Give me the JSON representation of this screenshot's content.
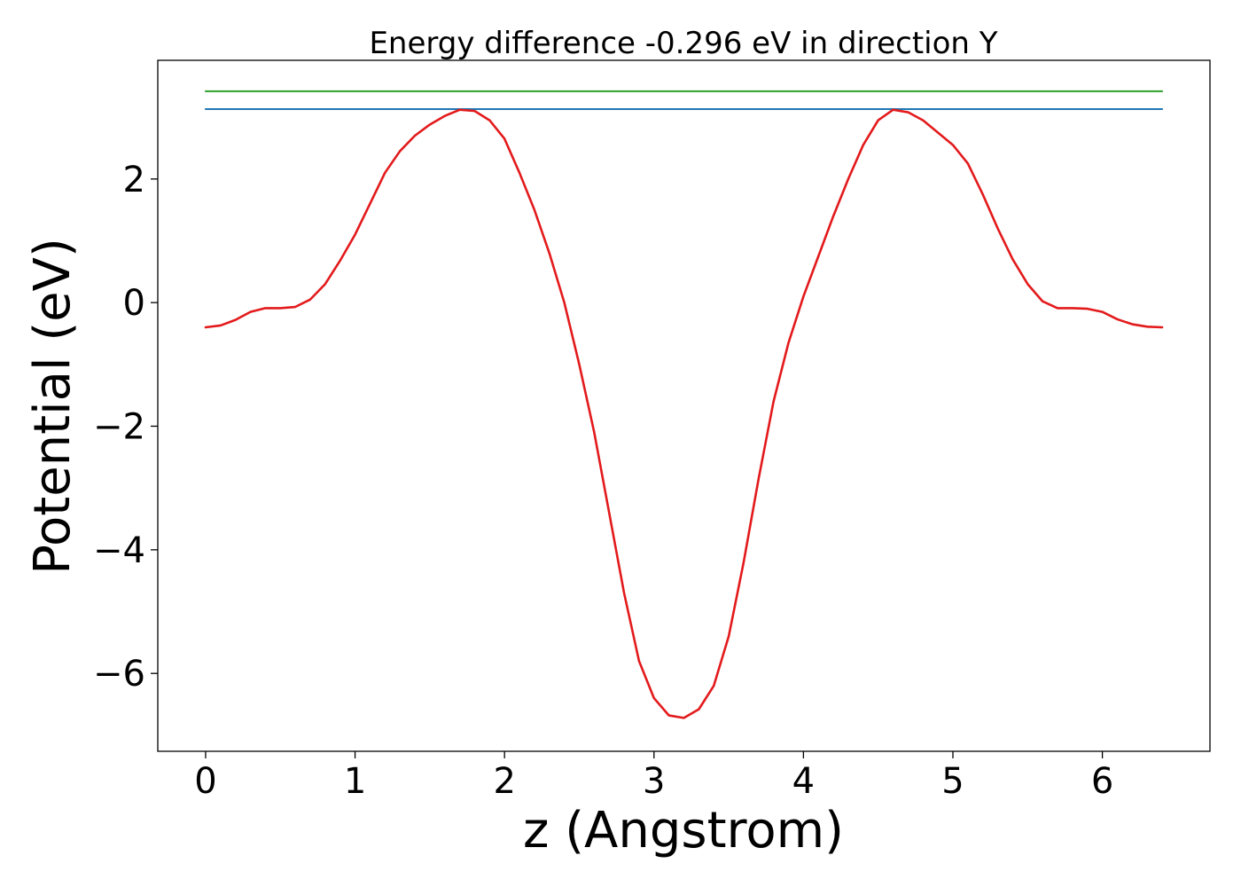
{
  "chart_data": {
    "type": "line",
    "title": "Energy difference -0.296 eV in direction Y",
    "xlabel": "z (Angstrom)",
    "ylabel": "Potential (eV)",
    "xlim": [
      -0.32,
      6.72
    ],
    "ylim": [
      -7.26,
      3.92
    ],
    "xticks": [
      0,
      1,
      2,
      3,
      4,
      5,
      6
    ],
    "xtick_labels": [
      "0",
      "1",
      "2",
      "3",
      "4",
      "5",
      "6"
    ],
    "yticks": [
      2,
      0,
      -2,
      -4,
      -6
    ],
    "ytick_labels": [
      "2",
      "0",
      "−2",
      "−4",
      "−6"
    ],
    "grid": false,
    "legend": "none",
    "series": [
      {
        "color": "#2ca02c",
        "x": [
          0.0,
          6.4
        ],
        "y": [
          3.42,
          3.42
        ]
      },
      {
        "color": "#1f77b4",
        "x": [
          0.0,
          6.4
        ],
        "y": [
          3.13,
          3.13
        ]
      },
      {
        "color": "#e31a1c",
        "x": [
          0.0,
          0.1,
          0.2,
          0.3,
          0.4,
          0.5,
          0.6,
          0.7,
          0.8,
          0.9,
          1.0,
          1.1,
          1.2,
          1.3,
          1.4,
          1.5,
          1.6,
          1.7,
          1.8,
          1.9,
          2.0,
          2.1,
          2.2,
          2.3,
          2.4,
          2.5,
          2.6,
          2.7,
          2.8,
          2.9,
          3.0,
          3.1,
          3.2,
          3.3,
          3.4,
          3.5,
          3.6,
          3.7,
          3.8,
          3.9,
          4.0,
          4.1,
          4.2,
          4.3,
          4.4,
          4.5,
          4.6,
          4.7,
          4.8,
          4.9,
          5.0,
          5.1,
          5.2,
          5.3,
          5.4,
          5.5,
          5.6,
          5.7,
          5.8,
          5.9,
          6.0,
          6.1,
          6.2,
          6.3,
          6.4
        ],
        "y": [
          -0.4,
          -0.37,
          -0.28,
          -0.15,
          -0.09,
          -0.09,
          -0.07,
          0.05,
          0.3,
          0.68,
          1.1,
          1.6,
          2.1,
          2.45,
          2.7,
          2.88,
          3.02,
          3.12,
          3.1,
          2.95,
          2.65,
          2.1,
          1.5,
          0.8,
          0.0,
          -1.0,
          -2.1,
          -3.4,
          -4.7,
          -5.8,
          -6.4,
          -6.68,
          -6.72,
          -6.58,
          -6.2,
          -5.4,
          -4.2,
          -2.85,
          -1.6,
          -0.65,
          0.1,
          0.75,
          1.4,
          2.0,
          2.55,
          2.95,
          3.12,
          3.08,
          2.95,
          2.75,
          2.55,
          2.25,
          1.75,
          1.2,
          0.7,
          0.3,
          0.02,
          -0.09,
          -0.09,
          -0.1,
          -0.15,
          -0.27,
          -0.35,
          -0.39,
          -0.4
        ]
      }
    ]
  }
}
